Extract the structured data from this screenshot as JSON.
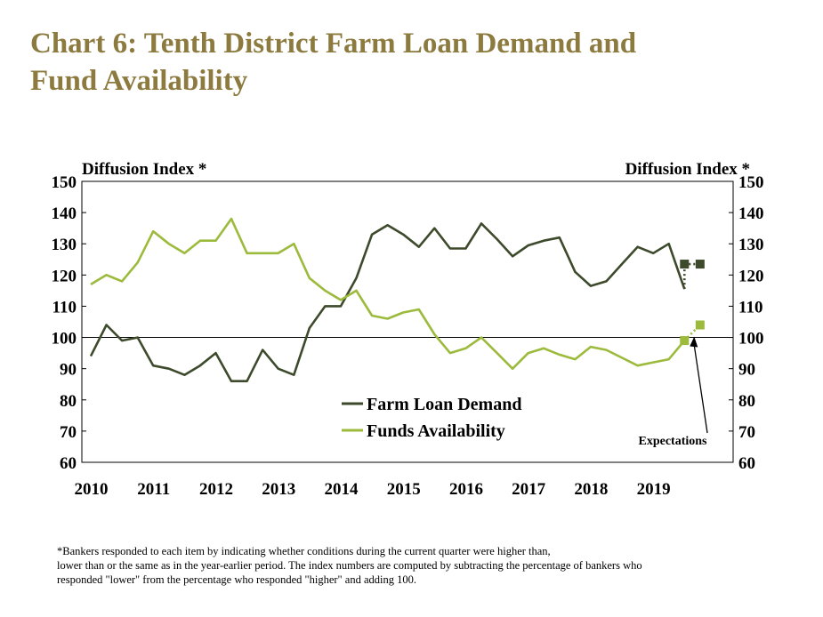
{
  "title": {
    "line1": "Chart 6: Tenth District Farm Loan Demand and",
    "line2": "Fund Availability"
  },
  "footnote": {
    "line1": "*Bankers responded to each item by indicating whether conditions during the current quarter were higher than,",
    "line2": "lower than or the same as in the year-earlier period.  The index numbers are computed by subtracting the percentage of bankers who",
    "line3": "responded \"lower\" from the percentage who responded \"higher\" and adding 100."
  },
  "chart_data": {
    "type": "line",
    "left_axis_label": "Diffusion Index *",
    "right_axis_label": "Diffusion Index *",
    "ylim": [
      60,
      150
    ],
    "yticks": [
      60,
      70,
      80,
      90,
      100,
      110,
      120,
      130,
      140,
      150
    ],
    "reference_line": 100,
    "x_tick_labels": [
      "2010",
      "2011",
      "2012",
      "2013",
      "2014",
      "2015",
      "2016",
      "2017",
      "2018",
      "2019"
    ],
    "x_start": "2010 Q1",
    "grid": false,
    "legend_position": "center-bottom",
    "series": [
      {
        "name": "Farm Loan Demand",
        "color": "#3d4a2c",
        "values": [
          94,
          104,
          99,
          100,
          91,
          90,
          88,
          91,
          95,
          86,
          86,
          96,
          90,
          88,
          103,
          110,
          110,
          119,
          133,
          136,
          133,
          129,
          135,
          128.5,
          128.5,
          136.5,
          131.5,
          126,
          129.5,
          131,
          132,
          121,
          116.5,
          118,
          123.5,
          129,
          127,
          130,
          115.5
        ],
        "expectations": [
          123.5,
          123.5
        ]
      },
      {
        "name": "Funds Availability",
        "color": "#9cba3c",
        "values": [
          117,
          120,
          118,
          124,
          134,
          130,
          127,
          131,
          131,
          138,
          127,
          127,
          127,
          130,
          119,
          115,
          112,
          115,
          107,
          106,
          108,
          109,
          101,
          95,
          96.5,
          100,
          95,
          90,
          95,
          96.5,
          94.5,
          93,
          97,
          96,
          93.5,
          91,
          92,
          93,
          99
        ],
        "expectations": [
          99,
          104
        ]
      }
    ],
    "annotation": "Expectations"
  }
}
